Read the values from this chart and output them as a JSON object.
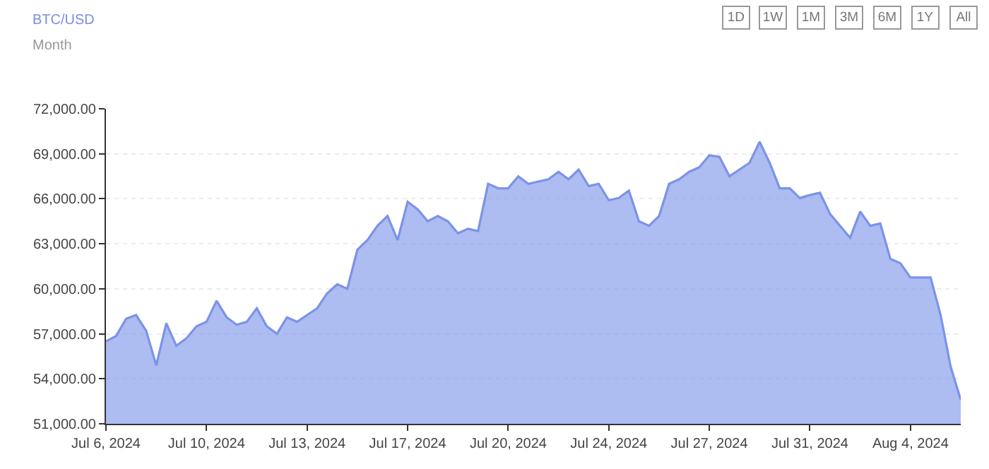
{
  "chart_data": {
    "type": "area",
    "title": "BTC/USD",
    "subtitle": "Month",
    "annotations": [
      "1D",
      "1W",
      "1M",
      "3M",
      "6M",
      "1Y",
      "All"
    ],
    "categories": [
      "Jul 6, 2024",
      null,
      null,
      null,
      null,
      null,
      null,
      null,
      null,
      null,
      "Jul 10, 2024",
      null,
      null,
      null,
      null,
      null,
      null,
      null,
      null,
      null,
      "Jul 13, 2024",
      null,
      null,
      null,
      null,
      null,
      null,
      null,
      null,
      null,
      "Jul 17, 2024",
      null,
      null,
      null,
      null,
      null,
      null,
      null,
      null,
      null,
      "Jul 20, 2024",
      null,
      null,
      null,
      null,
      null,
      null,
      null,
      null,
      null,
      "Jul 24, 2024",
      null,
      null,
      null,
      null,
      null,
      null,
      null,
      null,
      null,
      "Jul 27, 2024",
      null,
      null,
      null,
      null,
      null,
      null,
      null,
      null,
      null,
      "Jul 31, 2024",
      null,
      null,
      null,
      null,
      null,
      null,
      null,
      null,
      null,
      "Aug 4, 2024",
      null,
      null,
      null,
      null,
      null
    ],
    "series": [
      {
        "color": "#7b93e8",
        "values": [
          56500,
          56850,
          58000,
          58250,
          57200,
          54900,
          57700,
          56200,
          56700,
          57500,
          57800,
          59200,
          58100,
          57600,
          57800,
          58700,
          57500,
          57000,
          58100,
          57800,
          58250,
          58700,
          59700,
          60300,
          60000,
          62600,
          63250,
          64200,
          64850,
          63250,
          65800,
          65300,
          64500,
          64850,
          64500,
          63700,
          64000,
          63850,
          67000,
          66700,
          66700,
          67500,
          67000,
          67150,
          67300,
          67800,
          67300,
          67950,
          66850,
          67000,
          65900,
          66050,
          66550,
          64500,
          64200,
          64850,
          67000,
          67300,
          67800,
          68100,
          68900,
          68800,
          67500,
          67950,
          68400,
          69800,
          68400,
          66700,
          66700,
          66050,
          66250,
          66400,
          65000,
          64200,
          63400,
          65150,
          64200,
          64350,
          62000,
          61700,
          60750,
          60750,
          60750,
          58250,
          54800,
          52600
        ]
      }
    ],
    "ylim": [
      51000,
      72000
    ],
    "yticks": [
      {
        "value": 51000,
        "label": "51,000.00"
      },
      {
        "value": 54000,
        "label": "54,000.00"
      },
      {
        "value": 57000,
        "label": "57,000.00"
      },
      {
        "value": 60000,
        "label": "60,000.00"
      },
      {
        "value": 63000,
        "label": "63,000.00"
      },
      {
        "value": 66000,
        "label": "66,000.00"
      },
      {
        "value": 69000,
        "label": "69,000.00"
      },
      {
        "value": 72000,
        "label": "72,000.00"
      }
    ],
    "grid": "y",
    "marker": "none",
    "line_style": "solid"
  }
}
